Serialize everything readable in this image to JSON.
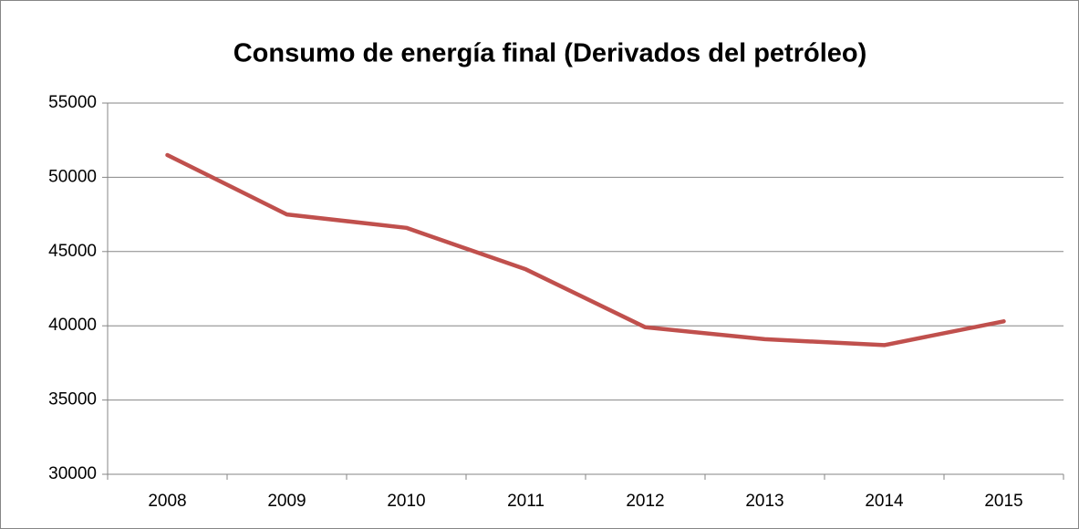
{
  "chart_data": {
    "type": "line",
    "title": "Consumo de energía final (Derivados del petróleo)",
    "categories": [
      "2008",
      "2009",
      "2010",
      "2011",
      "2012",
      "2013",
      "2014",
      "2015"
    ],
    "values": [
      51500,
      47500,
      46600,
      43800,
      39900,
      39100,
      38700,
      40300
    ],
    "color": "#c0504d",
    "ylim": [
      30000,
      55000
    ],
    "yticks": [
      30000,
      35000,
      40000,
      45000,
      50000,
      55000
    ],
    "grid": true
  }
}
